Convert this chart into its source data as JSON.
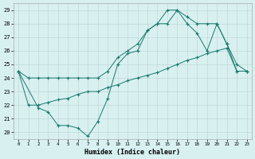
{
  "xlabel": "Humidex (Indice chaleur)",
  "bg_color": "#d8f0f0",
  "grid_color": "#c0d8d8",
  "line_color": "#1a7a6e",
  "xlim": [
    -0.5,
    23.5
  ],
  "ylim": [
    19.5,
    29.5
  ],
  "xticks": [
    0,
    1,
    2,
    3,
    4,
    5,
    6,
    7,
    8,
    9,
    10,
    11,
    12,
    13,
    14,
    15,
    16,
    17,
    18,
    19,
    20,
    21,
    22,
    23
  ],
  "yticks": [
    20,
    21,
    22,
    23,
    24,
    25,
    26,
    27,
    28,
    29
  ],
  "line1_x": [
    0,
    1,
    2,
    3,
    4,
    5,
    6,
    7,
    8,
    9,
    10,
    11,
    12,
    13,
    14,
    15,
    16,
    17,
    18,
    19,
    20,
    21,
    22,
    23
  ],
  "line1_y": [
    24.5,
    24.0,
    24.0,
    24.0,
    24.0,
    24.0,
    24.0,
    24.0,
    24.0,
    24.5,
    25.5,
    26.0,
    26.5,
    27.5,
    28.0,
    29.0,
    29.0,
    28.5,
    28.0,
    28.0,
    28.0,
    26.5,
    24.5,
    24.5
  ],
  "line2_x": [
    0,
    2,
    3,
    4,
    5,
    6,
    7,
    8,
    9,
    10,
    11,
    12,
    13,
    14,
    15,
    16,
    17,
    18,
    19,
    20,
    21,
    22,
    23
  ],
  "line2_y": [
    24.5,
    21.8,
    21.5,
    20.5,
    20.5,
    20.3,
    19.7,
    20.8,
    22.5,
    25.0,
    25.8,
    26.0,
    27.5,
    28.0,
    28.0,
    29.0,
    28.0,
    27.3,
    26.0,
    28.0,
    26.5,
    25.0,
    24.5
  ],
  "line3_x": [
    0,
    1,
    2,
    3,
    4,
    5,
    6,
    7,
    8,
    9,
    10,
    11,
    12,
    13,
    14,
    15,
    16,
    17,
    18,
    19,
    20,
    21,
    22,
    23
  ],
  "line3_y": [
    24.5,
    22.0,
    22.0,
    22.2,
    22.4,
    22.5,
    22.8,
    23.0,
    23.0,
    23.3,
    23.5,
    23.8,
    24.0,
    24.2,
    24.4,
    24.7,
    25.0,
    25.3,
    25.5,
    25.8,
    26.0,
    26.2,
    24.5,
    24.5
  ]
}
